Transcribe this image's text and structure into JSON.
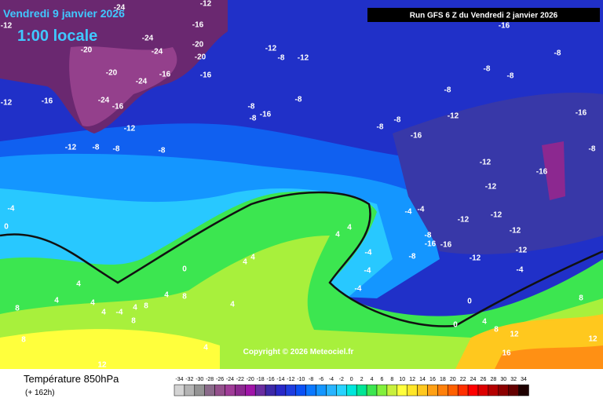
{
  "header": {
    "date": "Vendredi 9 janvier 2026",
    "time": "1:00 locale",
    "run": "Run GFS 6 Z du Vendredi 2 janvier 2026",
    "copyright": "Copyright © 2026 Meteociel.fr"
  },
  "legend": {
    "title": "Température 850hPa",
    "lead": "(+ 162h)",
    "scale": [
      {
        "value": -34,
        "color": "#d4d4d4"
      },
      {
        "value": -32,
        "color": "#b4b4b4"
      },
      {
        "value": -30,
        "color": "#949494"
      },
      {
        "value": -28,
        "color": "#8a6a8a"
      },
      {
        "value": -26,
        "color": "#94508c"
      },
      {
        "value": -24,
        "color": "#a03c98"
      },
      {
        "value": -22,
        "color": "#8c2890"
      },
      {
        "value": -20,
        "color": "#a014a8"
      },
      {
        "value": -18,
        "color": "#6a2ca0"
      },
      {
        "value": -16,
        "color": "#3c28a8"
      },
      {
        "value": -14,
        "color": "#2828c8"
      },
      {
        "value": -12,
        "color": "#1e3ce0"
      },
      {
        "value": -10,
        "color": "#0a50f5"
      },
      {
        "value": -8,
        "color": "#0a78ff"
      },
      {
        "value": -6,
        "color": "#1496ff"
      },
      {
        "value": -4,
        "color": "#28b4ff"
      },
      {
        "value": -2,
        "color": "#28d2ff"
      },
      {
        "value": 0,
        "color": "#00e6dc"
      },
      {
        "value": 2,
        "color": "#00e696"
      },
      {
        "value": 4,
        "color": "#3ce650"
      },
      {
        "value": 6,
        "color": "#82f03c"
      },
      {
        "value": 8,
        "color": "#c8f03c"
      },
      {
        "value": 10,
        "color": "#ffff3c"
      },
      {
        "value": 12,
        "color": "#ffe628"
      },
      {
        "value": 14,
        "color": "#ffc81e"
      },
      {
        "value": 16,
        "color": "#ffa014"
      },
      {
        "value": 18,
        "color": "#ff800a"
      },
      {
        "value": 20,
        "color": "#ff6000"
      },
      {
        "value": 22,
        "color": "#ff3000"
      },
      {
        "value": 24,
        "color": "#ff0000"
      },
      {
        "value": 26,
        "color": "#dc0000"
      },
      {
        "value": 28,
        "color": "#b40000"
      },
      {
        "value": 30,
        "color": "#8c0000"
      },
      {
        "value": 32,
        "color": "#640000"
      },
      {
        "value": 34,
        "color": "#1e0000"
      }
    ]
  },
  "map": {
    "labels": [
      -12,
      -24,
      -12,
      -24,
      -16,
      -20,
      -20,
      -24,
      -20,
      -12,
      -8,
      -12,
      -16,
      -16,
      -16,
      -20,
      -24,
      -12,
      -16,
      -24,
      -16,
      -8,
      -8,
      -16,
      -8,
      -12,
      -12,
      -8,
      -8,
      -8,
      -8,
      -8,
      -16,
      -12,
      -8,
      -8,
      -8,
      -8,
      -16,
      -8,
      -12,
      -16,
      -12,
      -12,
      -12,
      -12,
      -12,
      -12,
      -4,
      -16,
      -16,
      -8,
      -8,
      -4,
      -4,
      -4,
      -4,
      -4,
      4,
      4,
      4,
      4,
      0,
      4,
      0,
      -4,
      4,
      4,
      4,
      4,
      -4,
      4,
      4,
      8,
      8,
      8,
      8,
      8,
      4,
      0,
      4,
      8,
      12,
      16,
      12,
      8,
      12,
      0
    ]
  }
}
